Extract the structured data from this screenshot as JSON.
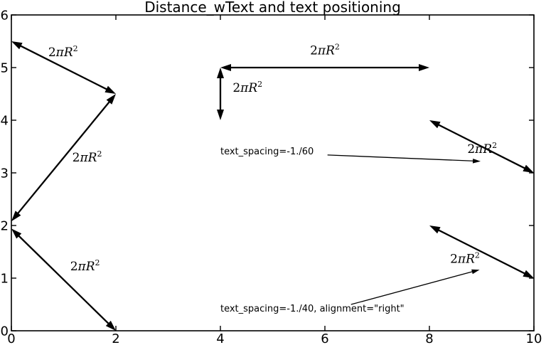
{
  "colors": {
    "foreground": "#000000",
    "background": "#ffffff"
  },
  "chart_data": {
    "type": "line",
    "title": "Distance_wText and text positioning",
    "xlabel": "",
    "ylabel": "",
    "xlim": [
      0,
      10
    ],
    "ylim": [
      0,
      6
    ],
    "xticks": [
      0,
      2,
      4,
      6,
      8,
      10
    ],
    "yticks": [
      0,
      1,
      2,
      3,
      4,
      5,
      6
    ],
    "grid": false,
    "legend": null,
    "arrows": [
      {
        "x1": 0,
        "y1": 5.5,
        "x2": 2,
        "y2": 4.5,
        "label": {
          "text": "2πR²",
          "pre": "2",
          "italic": "πR",
          "sup": "2"
        },
        "label_x": 0.99,
        "label_y": 5.3
      },
      {
        "x1": 2,
        "y1": 4.5,
        "x2": 0,
        "y2": 2.08,
        "label": {
          "text": "2πR²",
          "pre": "2",
          "italic": "πR",
          "sup": "2"
        },
        "label_x": 1.45,
        "label_y": 3.3
      },
      {
        "x1": 0,
        "y1": 1.94,
        "x2": 2,
        "y2": 0,
        "label": {
          "text": "2πR²",
          "pre": "2",
          "italic": "πR",
          "sup": "2"
        },
        "label_x": 1.41,
        "label_y": 1.23
      },
      {
        "x1": 4,
        "y1": 5,
        "x2": 8,
        "y2": 5,
        "label": {
          "text": "2πR²",
          "pre": "2",
          "italic": "πR",
          "sup": "2"
        },
        "label_x": 6.0,
        "label_y": 5.33
      },
      {
        "x1": 4,
        "y1": 5,
        "x2": 4,
        "y2": 4,
        "label": {
          "text": "2πR²",
          "pre": "2",
          "italic": "πR",
          "sup": "2"
        },
        "label_x": 4.52,
        "label_y": 4.62
      },
      {
        "x1": 8,
        "y1": 4,
        "x2": 10,
        "y2": 3,
        "label": {
          "text": "2πR²",
          "pre": "2",
          "italic": "πR",
          "sup": "2"
        },
        "label_x": 9.01,
        "label_y": 3.46
      },
      {
        "x1": 8,
        "y1": 2,
        "x2": 10,
        "y2": 1,
        "label": {
          "text": "2πR²",
          "pre": "2",
          "italic": "πR",
          "sup": "2"
        },
        "label_x": 8.68,
        "label_y": 1.37
      }
    ],
    "annotations": [
      {
        "text": "text_spacing=-1./60",
        "text_x": 4.0,
        "text_y": 3.39,
        "arrow": {
          "x1": 6.05,
          "y1": 3.34,
          "x2": 8.98,
          "y2": 3.22
        }
      },
      {
        "text": "text_spacing=-1./40, alignment=\"right\"",
        "text_x": 4.0,
        "text_y": 0.4,
        "arrow": {
          "x1": 6.5,
          "y1": 0.5,
          "x2": 8.96,
          "y2": 1.16
        }
      }
    ]
  }
}
